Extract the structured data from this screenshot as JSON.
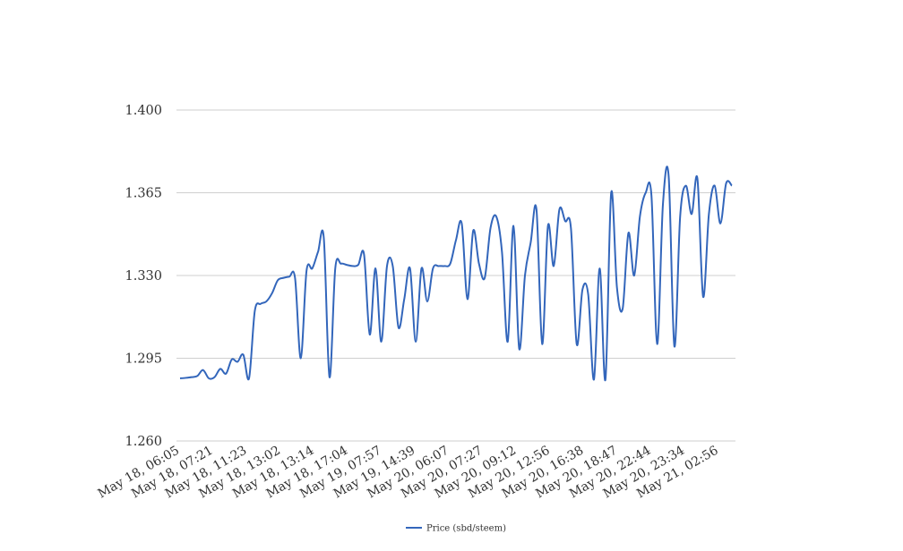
{
  "chart_data": {
    "type": "line",
    "title": "",
    "xlabel": "",
    "ylabel": "",
    "ylim": [
      1.26,
      1.4
    ],
    "yticks": [
      "1.260",
      "1.295",
      "1.330",
      "1.365",
      "1.400"
    ],
    "xticks": [
      "May 18, 06:05",
      "May 18, 07:21",
      "May 18, 11:23",
      "May 18, 13:02",
      "May 18, 13:14",
      "May 18, 17:04",
      "May 19, 07:57",
      "May 19, 14:39",
      "May 20, 06:07",
      "May 20, 07:27",
      "May 20, 09:12",
      "May 20, 12:56",
      "May 20, 16:38",
      "May 20, 18:47",
      "May 20, 22:44",
      "May 20, 23:34",
      "May 21, 02:56"
    ],
    "grid": true,
    "legend_position": "bottom-center",
    "series": [
      {
        "name": "Price (sbd/steem)",
        "color": "#3366bb",
        "values": [
          1.2865,
          1.2867,
          1.287,
          1.2875,
          1.29,
          1.2865,
          1.287,
          1.2905,
          1.2885,
          1.2945,
          1.2935,
          1.2965,
          1.2865,
          1.315,
          1.318,
          1.319,
          1.3225,
          1.328,
          1.329,
          1.3295,
          1.329,
          1.295,
          1.332,
          1.333,
          1.34,
          1.346,
          1.287,
          1.333,
          1.335,
          1.3345,
          1.334,
          1.3345,
          1.339,
          1.305,
          1.333,
          1.302,
          1.334,
          1.334,
          1.308,
          1.32,
          1.333,
          1.302,
          1.333,
          1.319,
          1.333,
          1.334,
          1.334,
          1.335,
          1.345,
          1.352,
          1.32,
          1.349,
          1.335,
          1.329,
          1.35,
          1.355,
          1.34,
          1.302,
          1.351,
          1.299,
          1.33,
          1.344,
          1.358,
          1.301,
          1.351,
          1.334,
          1.358,
          1.353,
          1.35,
          1.301,
          1.324,
          1.322,
          1.286,
          1.333,
          1.286,
          1.365,
          1.325,
          1.316,
          1.348,
          1.33,
          1.355,
          1.365,
          1.364,
          1.301,
          1.36,
          1.372,
          1.3,
          1.355,
          1.368,
          1.356,
          1.371,
          1.321,
          1.356,
          1.368,
          1.352,
          1.369,
          1.368
        ]
      }
    ]
  }
}
